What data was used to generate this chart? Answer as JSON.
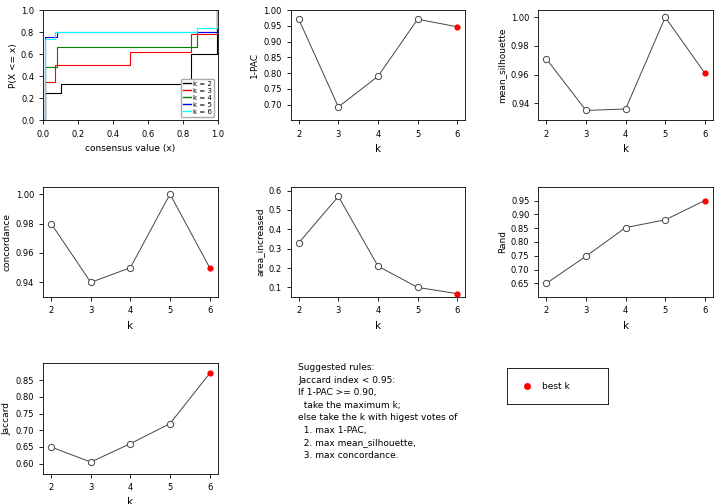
{
  "k_values": [
    2,
    3,
    4,
    5,
    6
  ],
  "pac_1minus": [
    0.971,
    0.693,
    0.79,
    0.971,
    0.947
  ],
  "mean_silhouette": [
    0.971,
    0.935,
    0.936,
    1.0,
    0.961
  ],
  "concordance": [
    0.98,
    0.94,
    0.95,
    1.0,
    0.95
  ],
  "area_increased": [
    0.33,
    0.57,
    0.21,
    0.105,
    0.068
  ],
  "rand": [
    0.656,
    0.748,
    0.852,
    0.88,
    0.95
  ],
  "jaccard": [
    0.65,
    0.61,
    0.66,
    0.72,
    0.86
  ],
  "best_k": 6,
  "ecdf_colors": [
    "black",
    "red",
    "green",
    "blue",
    "cyan"
  ],
  "ecdf_labels": [
    "k = 2",
    "k = 3",
    "k = 4",
    "k = 5",
    "k = 6"
  ],
  "red_dot_color": "#ff0000",
  "line_color": "#444444",
  "bg_color": "white",
  "text_rules": "Suggested rules:\nJaccard index < 0.95:\nIf 1-PAC >= 0.90,\n  take the maximum k;\nelse take the k with higest votes of\n  1. max 1-PAC,\n  2. max mean_silhouette,\n  3. max concordance.",
  "text_best_k": "best k"
}
